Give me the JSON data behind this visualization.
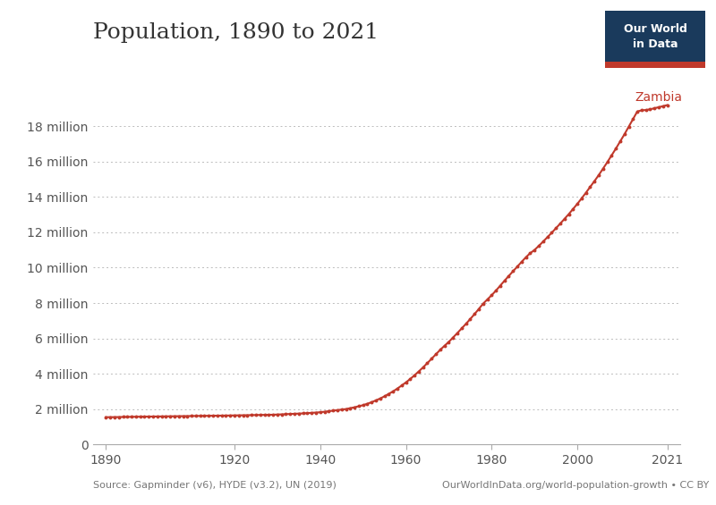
{
  "title": "Population, 1890 to 2021",
  "line_color": "#c0392b",
  "dot_color": "#c0392b",
  "background_color": "#ffffff",
  "grid_color": "#bbbbbb",
  "label_color": "#555555",
  "source_text": "Source: Gapminder (v6), HYDE (v3.2), UN (2019)",
  "url_text": "OurWorldInData.org/world-population-growth • CC BY",
  "owid_box_bg": "#1a3a5c",
  "owid_box_red": "#c0392b",
  "series_label": "Zambia",
  "years": [
    1890,
    1891,
    1892,
    1893,
    1894,
    1895,
    1896,
    1897,
    1898,
    1899,
    1900,
    1901,
    1902,
    1903,
    1904,
    1905,
    1906,
    1907,
    1908,
    1909,
    1910,
    1911,
    1912,
    1913,
    1914,
    1915,
    1916,
    1917,
    1918,
    1919,
    1920,
    1921,
    1922,
    1923,
    1924,
    1925,
    1926,
    1927,
    1928,
    1929,
    1930,
    1931,
    1932,
    1933,
    1934,
    1935,
    1936,
    1937,
    1938,
    1939,
    1940,
    1941,
    1942,
    1943,
    1944,
    1945,
    1946,
    1947,
    1948,
    1949,
    1950,
    1951,
    1952,
    1953,
    1954,
    1955,
    1956,
    1957,
    1958,
    1959,
    1960,
    1961,
    1962,
    1963,
    1964,
    1965,
    1966,
    1967,
    1968,
    1969,
    1970,
    1971,
    1972,
    1973,
    1974,
    1975,
    1976,
    1977,
    1978,
    1979,
    1980,
    1981,
    1982,
    1983,
    1984,
    1985,
    1986,
    1987,
    1988,
    1989,
    1990,
    1991,
    1992,
    1993,
    1994,
    1995,
    1996,
    1997,
    1998,
    1999,
    2000,
    2001,
    2002,
    2003,
    2004,
    2005,
    2006,
    2007,
    2008,
    2009,
    2010,
    2011,
    2012,
    2013,
    2014,
    2015,
    2016,
    2017,
    2018,
    2019,
    2020,
    2021
  ],
  "population": [
    1540000,
    1540000,
    1545000,
    1550000,
    1555000,
    1560000,
    1562000,
    1565000,
    1568000,
    1572000,
    1575000,
    1578000,
    1580000,
    1583000,
    1587000,
    1590000,
    1593000,
    1597000,
    1600000,
    1603000,
    1607000,
    1610000,
    1613000,
    1617000,
    1620000,
    1623000,
    1627000,
    1630000,
    1633000,
    1637000,
    1640000,
    1643000,
    1647000,
    1650000,
    1655000,
    1660000,
    1665000,
    1670000,
    1675000,
    1680000,
    1690000,
    1700000,
    1710000,
    1720000,
    1730000,
    1740000,
    1755000,
    1770000,
    1785000,
    1800000,
    1820000,
    1850000,
    1880000,
    1910000,
    1940000,
    1970000,
    2000000,
    2050000,
    2100000,
    2160000,
    2220000,
    2300000,
    2390000,
    2490000,
    2600000,
    2720000,
    2860000,
    3000000,
    3160000,
    3330000,
    3510000,
    3700000,
    3910000,
    4130000,
    4360000,
    4600000,
    4850000,
    5100000,
    5350000,
    5580000,
    5800000,
    6050000,
    6300000,
    6560000,
    6820000,
    7090000,
    7370000,
    7660000,
    7960000,
    8200000,
    8440000,
    8700000,
    8980000,
    9260000,
    9530000,
    9800000,
    10060000,
    10330000,
    10590000,
    10820000,
    11000000,
    11230000,
    11470000,
    11720000,
    11970000,
    12230000,
    12490000,
    12760000,
    13030000,
    13320000,
    13610000,
    13920000,
    14240000,
    14570000,
    14900000,
    15240000,
    15600000,
    15970000,
    16350000,
    16740000,
    17140000,
    17550000,
    17980000,
    18410000,
    18840000,
    18900000,
    18920000,
    18960000,
    19020000,
    19080000,
    19140000,
    19200000
  ],
  "xlim": [
    1887,
    2024
  ],
  "ylim": [
    0,
    20000000
  ],
  "yticks": [
    0,
    2000000,
    4000000,
    6000000,
    8000000,
    10000000,
    12000000,
    14000000,
    16000000,
    18000000
  ],
  "ytick_labels": [
    "0",
    "2 million",
    "4 million",
    "6 million",
    "8 million",
    "10 million",
    "12 million",
    "14 million",
    "16 million",
    "18 million"
  ],
  "xticks": [
    1890,
    1920,
    1940,
    1960,
    1980,
    2000,
    2021
  ]
}
